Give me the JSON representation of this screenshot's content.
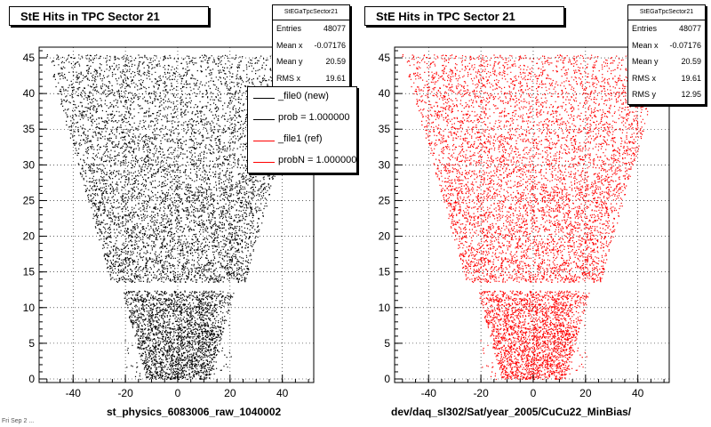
{
  "pads": [
    {
      "title": "StE Hits in TPC Sector 21",
      "xlabel": "st_physics_6083006_raw_1040002",
      "stats": {
        "name": "StEGaTpcSector21",
        "rows": [
          {
            "label": "Entries",
            "value": "48077"
          },
          {
            "label": "Mean x",
            "value": "-0.07176"
          },
          {
            "label": "Mean y",
            "value": "20.59"
          },
          {
            "label": "RMS x",
            "value": "19.61"
          }
        ]
      },
      "legend": [
        {
          "label": "_file0 (new)",
          "color": "#000000"
        },
        {
          "label": "prob = 1.000000",
          "color": "#000000"
        },
        {
          "label": "_file1 (ref)",
          "color": "#ff0000"
        },
        {
          "label": "probN = 1.000000",
          "color": "#ff0000"
        }
      ]
    },
    {
      "title": "StE Hits in TPC Sector 21",
      "xlabel": "dev/daq_sl302/Sat/year_2005/CuCu22_MinBias/",
      "stats": {
        "name": "StEGaTpcSector21",
        "rows": [
          {
            "label": "Entries",
            "value": "48077"
          },
          {
            "label": "Mean x",
            "value": "-0.07176"
          },
          {
            "label": "Mean y",
            "value": "20.59"
          },
          {
            "label": "RMS x",
            "value": "19.61"
          },
          {
            "label": "RMS y",
            "value": "12.95"
          }
        ]
      }
    }
  ],
  "footer": "Fri Sep 2 ...",
  "chart_data": [
    {
      "type": "scatter",
      "title": "StE Hits in TPC Sector 21",
      "xlabel": "st_physics_6083006_raw_1040002",
      "ylabel": "",
      "xlim": [
        -53,
        52
      ],
      "ylim": [
        -0.5,
        46.5
      ],
      "xticks": [
        -40,
        -20,
        0,
        20,
        40
      ],
      "yticks": [
        0,
        5,
        10,
        15,
        20,
        25,
        30,
        35,
        40,
        45
      ],
      "grid": true,
      "color": "#000000",
      "entries": 48077,
      "mean_x": -0.07176,
      "mean_y": 20.59,
      "rms_x": 19.61,
      "shape": "trapezoid of TPC pad rows: half-width ~12 at y=0 widening to ~47 at y=45, with a gap between y=12.5 and y=13.5 and a denser inner region below y=12.5"
    },
    {
      "type": "scatter",
      "title": "StE Hits in TPC Sector 21",
      "xlabel": "dev/daq_sl302/Sat/year_2005/CuCu22_MinBias/",
      "ylabel": "",
      "xlim": [
        -53,
        52
      ],
      "ylim": [
        -0.5,
        46.5
      ],
      "xticks": [
        -40,
        -20,
        0,
        20,
        40
      ],
      "yticks": [
        0,
        5,
        10,
        15,
        20,
        25,
        30,
        35,
        40,
        45
      ],
      "grid": true,
      "color": "#ff0000",
      "entries": 48077,
      "mean_x": -0.07176,
      "mean_y": 20.59,
      "rms_x": 19.61,
      "rms_y": 12.95,
      "shape": "same trapezoid distribution as left pad"
    }
  ]
}
